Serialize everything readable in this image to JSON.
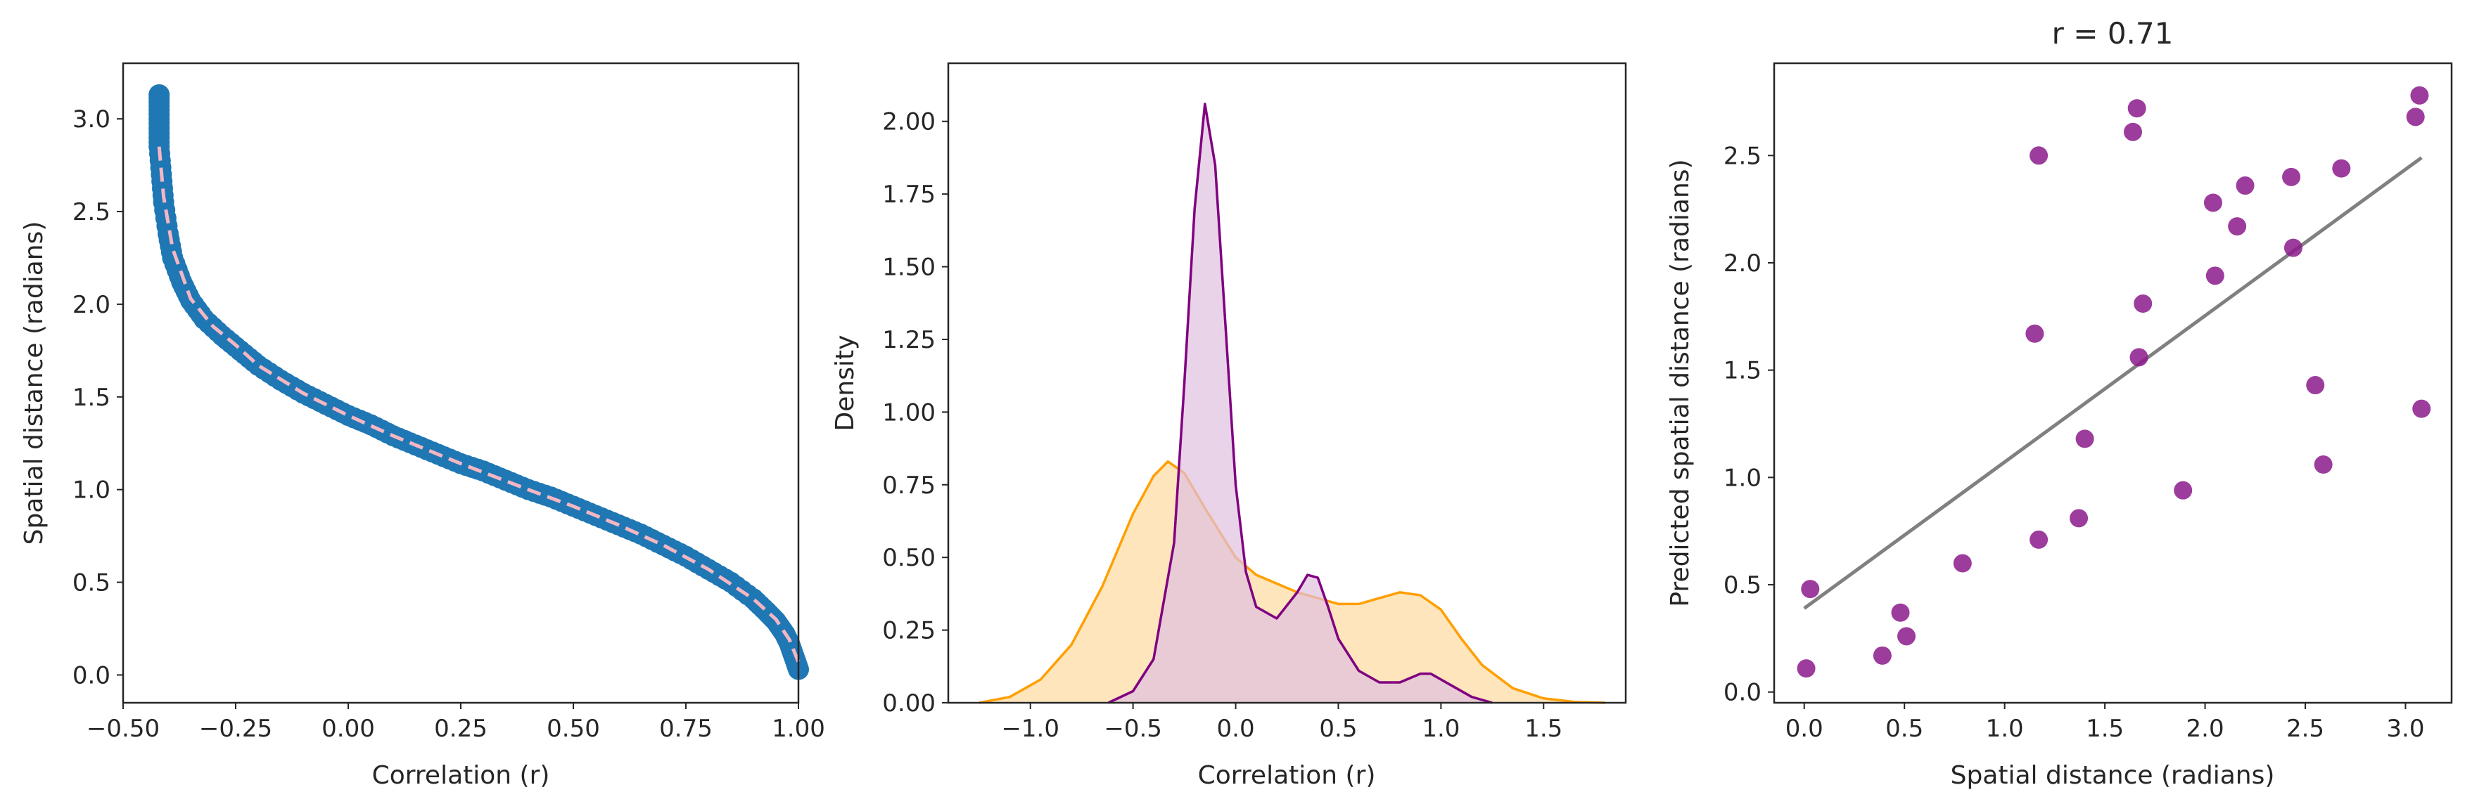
{
  "chart_data": [
    {
      "type": "scatter",
      "title": "",
      "xlabel": "Correlation (r)",
      "ylabel": "Spatial distance (radians)",
      "xlim": [
        -0.5,
        1.0
      ],
      "ylim": [
        -0.15,
        3.3
      ],
      "xticks": [
        -0.5,
        -0.25,
        0.0,
        0.25,
        0.5,
        0.75,
        1.0
      ],
      "xtick_labels": [
        "−0.50",
        "−0.25",
        "0.00",
        "0.25",
        "0.50",
        "0.75",
        "1.00"
      ],
      "yticks": [
        0.0,
        0.5,
        1.0,
        1.5,
        2.0,
        2.5,
        3.0
      ],
      "ytick_labels": [
        "0.0",
        "0.5",
        "1.0",
        "1.5",
        "2.0",
        "2.5",
        "3.0"
      ],
      "grid": false,
      "series": [
        {
          "kind": "scatter",
          "color": "#1f77b4",
          "x": [
            -0.42,
            -0.42,
            -0.42,
            -0.42,
            -0.415,
            -0.41,
            -0.4,
            -0.39,
            -0.37,
            -0.35,
            -0.32,
            -0.28,
            -0.24,
            -0.2,
            -0.15,
            -0.1,
            -0.05,
            0.0,
            0.05,
            0.1,
            0.15,
            0.2,
            0.25,
            0.3,
            0.35,
            0.4,
            0.45,
            0.5,
            0.55,
            0.6,
            0.65,
            0.7,
            0.75,
            0.8,
            0.85,
            0.9,
            0.93,
            0.95,
            0.97,
            0.98,
            0.99,
            1.0
          ],
          "y": [
            3.13,
            3.05,
            2.95,
            2.85,
            2.7,
            2.55,
            2.38,
            2.25,
            2.12,
            2.02,
            1.92,
            1.83,
            1.75,
            1.67,
            1.59,
            1.52,
            1.46,
            1.4,
            1.35,
            1.29,
            1.24,
            1.19,
            1.14,
            1.1,
            1.05,
            1.0,
            0.96,
            0.91,
            0.86,
            0.81,
            0.76,
            0.7,
            0.64,
            0.57,
            0.5,
            0.41,
            0.34,
            0.29,
            0.22,
            0.17,
            0.1,
            0.03
          ]
        },
        {
          "kind": "line",
          "style": "dashed",
          "color": "#f4b6c2",
          "x": [
            -0.42,
            -0.41,
            -0.39,
            -0.35,
            -0.3,
            -0.25,
            -0.2,
            -0.1,
            0.0,
            0.1,
            0.25,
            0.4,
            0.5,
            0.6,
            0.7,
            0.8,
            0.9,
            0.95,
            0.98,
            1.0
          ],
          "y": [
            2.85,
            2.58,
            2.3,
            2.03,
            1.88,
            1.78,
            1.67,
            1.52,
            1.4,
            1.29,
            1.14,
            1.0,
            0.91,
            0.81,
            0.7,
            0.57,
            0.41,
            0.3,
            0.19,
            0.07
          ]
        }
      ]
    },
    {
      "type": "area",
      "title": "",
      "xlabel": "Correlation (r)",
      "ylabel": "Density",
      "xlim": [
        -1.4,
        1.9
      ],
      "ylim": [
        0.0,
        2.2
      ],
      "xticks": [
        -1.0,
        -0.5,
        0.0,
        0.5,
        1.0,
        1.5
      ],
      "xtick_labels": [
        "−1.0",
        "−0.5",
        "0.0",
        "0.5",
        "1.0",
        "1.5"
      ],
      "yticks": [
        0.0,
        0.25,
        0.5,
        0.75,
        1.0,
        1.25,
        1.5,
        1.75,
        2.0
      ],
      "ytick_labels": [
        "0.00",
        "0.25",
        "0.50",
        "0.75",
        "1.00",
        "1.25",
        "1.50",
        "1.75",
        "2.00"
      ],
      "grid": false,
      "series": [
        {
          "color": "#ff9f00",
          "fill": "#ffe0b0",
          "x": [
            -1.25,
            -1.1,
            -0.95,
            -0.8,
            -0.65,
            -0.5,
            -0.4,
            -0.33,
            -0.25,
            -0.15,
            0.0,
            0.1,
            0.2,
            0.3,
            0.4,
            0.5,
            0.6,
            0.7,
            0.8,
            0.9,
            1.0,
            1.1,
            1.2,
            1.35,
            1.5,
            1.65,
            1.8
          ],
          "y": [
            0.0,
            0.02,
            0.08,
            0.2,
            0.4,
            0.65,
            0.78,
            0.83,
            0.79,
            0.67,
            0.5,
            0.44,
            0.41,
            0.38,
            0.36,
            0.34,
            0.34,
            0.36,
            0.38,
            0.37,
            0.32,
            0.22,
            0.13,
            0.05,
            0.015,
            0.003,
            0.0
          ]
        },
        {
          "color": "#800080",
          "fill": "#e0c0e0",
          "x": [
            -0.62,
            -0.5,
            -0.4,
            -0.3,
            -0.25,
            -0.2,
            -0.15,
            -0.1,
            -0.05,
            0.0,
            0.05,
            0.1,
            0.2,
            0.3,
            0.35,
            0.4,
            0.45,
            0.5,
            0.6,
            0.7,
            0.8,
            0.9,
            0.95,
            1.05,
            1.15,
            1.25
          ],
          "y": [
            0.0,
            0.04,
            0.15,
            0.55,
            1.1,
            1.7,
            2.06,
            1.85,
            1.3,
            0.75,
            0.45,
            0.33,
            0.29,
            0.38,
            0.44,
            0.43,
            0.33,
            0.22,
            0.11,
            0.07,
            0.07,
            0.1,
            0.1,
            0.06,
            0.02,
            0.0
          ]
        }
      ]
    },
    {
      "type": "scatter",
      "title": "r = 0.71",
      "xlabel": "Spatial distance (radians)",
      "ylabel": "Predicted spatial distance (radians)",
      "xlim": [
        -0.15,
        3.23
      ],
      "ylim": [
        -0.05,
        2.93
      ],
      "xticks": [
        0.0,
        0.5,
        1.0,
        1.5,
        2.0,
        2.5,
        3.0
      ],
      "xtick_labels": [
        "0.0",
        "0.5",
        "1.0",
        "1.5",
        "2.0",
        "2.5",
        "3.0"
      ],
      "yticks": [
        0.0,
        0.5,
        1.0,
        1.5,
        2.0,
        2.5
      ],
      "ytick_labels": [
        "0.0",
        "0.5",
        "1.0",
        "1.5",
        "2.0",
        "2.5"
      ],
      "grid": false,
      "points_color": "#8b1a8b",
      "x": [
        0.01,
        0.03,
        0.39,
        0.48,
        0.51,
        0.79,
        1.15,
        1.17,
        1.17,
        1.37,
        1.4,
        1.64,
        1.66,
        1.67,
        1.69,
        1.89,
        2.04,
        2.05,
        2.16,
        2.2,
        2.43,
        2.44,
        2.55,
        2.59,
        2.68,
        3.05,
        3.07,
        3.08
      ],
      "y": [
        0.11,
        0.48,
        0.17,
        0.37,
        0.26,
        0.6,
        1.67,
        0.71,
        2.5,
        0.81,
        1.18,
        2.61,
        2.72,
        1.56,
        1.81,
        0.94,
        2.28,
        1.94,
        2.17,
        2.36,
        2.4,
        2.07,
        1.43,
        1.06,
        2.44,
        2.68,
        2.78,
        1.32
      ],
      "fit_line": {
        "color": "#808080",
        "x": [
          0.0,
          3.08
        ],
        "y": [
          0.39,
          2.49
        ]
      }
    }
  ]
}
